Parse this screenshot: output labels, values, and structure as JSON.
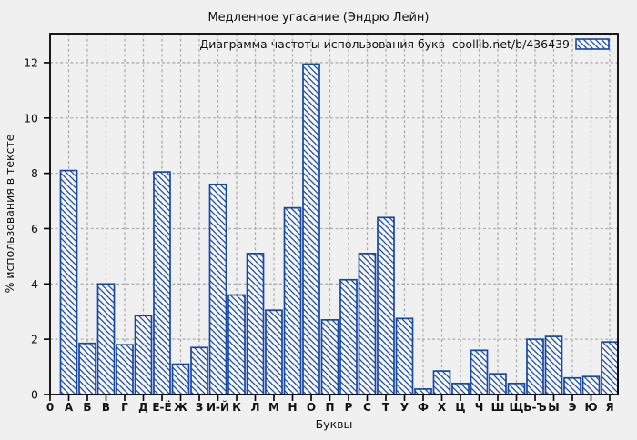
{
  "chart_data": {
    "type": "bar",
    "title": "Медленное угасание (Эндрю Лейн)",
    "legend_label": "Диаграмма частоты использования букв  coollib.net/b/436439",
    "legend_position": "top-right-inside",
    "xlabel": "Буквы",
    "ylabel": "% использования в тексте",
    "x_first_tick": "0",
    "categories": [
      "А",
      "Б",
      "В",
      "Г",
      "Д",
      "Е-Ё",
      "Ж",
      "З",
      "И-Й",
      "К",
      "Л",
      "М",
      "Н",
      "О",
      "П",
      "Р",
      "С",
      "Т",
      "У",
      "Ф",
      "Х",
      "Ц",
      "Ч",
      "Ш",
      "Щ",
      "Ь-Ъ",
      "Ы",
      "Э",
      "Ю",
      "Я"
    ],
    "values": [
      8.1,
      1.85,
      4.0,
      1.8,
      2.85,
      8.05,
      1.1,
      1.7,
      7.6,
      3.6,
      5.1,
      3.05,
      6.75,
      11.95,
      2.7,
      4.15,
      5.1,
      6.4,
      2.75,
      0.2,
      0.85,
      0.4,
      1.6,
      0.75,
      0.4,
      2.0,
      2.1,
      0.6,
      0.65,
      1.9
    ],
    "yticks": [
      0,
      2,
      4,
      6,
      8,
      10,
      12
    ],
    "ylim": [
      0,
      13.05
    ],
    "grid": true,
    "bar_style": "diagonal-hatch",
    "colors": {
      "bar_border": "#1648a6",
      "bar_hatch": "#1648a6",
      "bar_fill": "#f6f6f6",
      "grid": "#adadad",
      "frame": "#000000",
      "background": "#f0f0f0",
      "text": "#111111"
    }
  }
}
